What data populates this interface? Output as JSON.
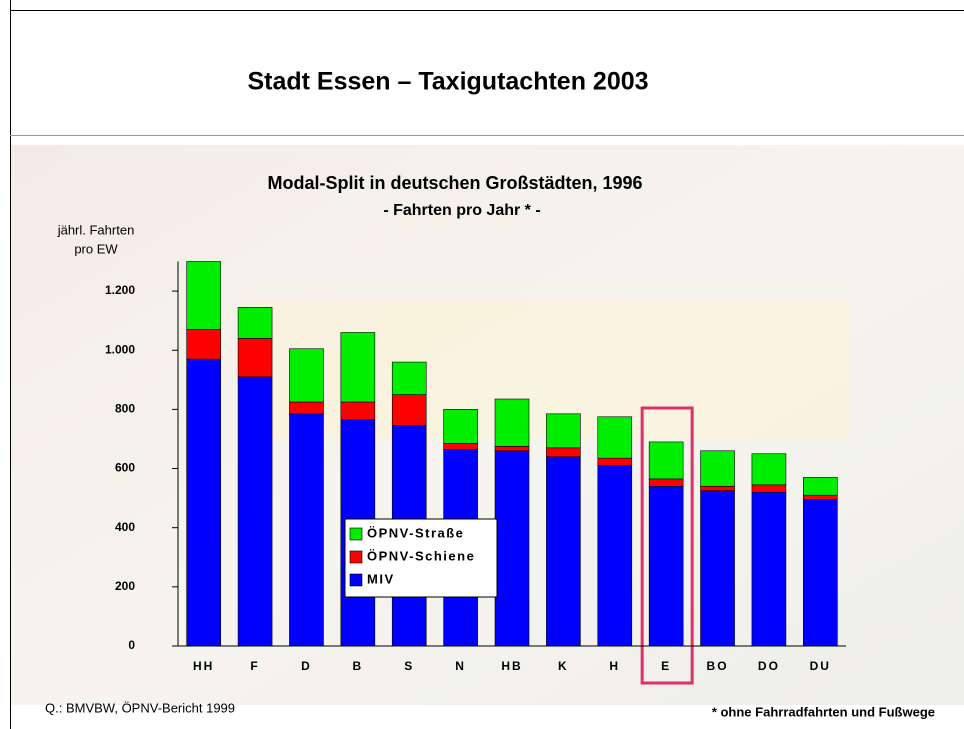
{
  "header": {
    "title": "Stadt Essen – Taxigutachten 2003"
  },
  "chart_data": {
    "type": "stacked_bar",
    "title": "Modal-Split in deutschen Großstädten, 1996",
    "subtitle": "- Fahrten pro Jahr * -",
    "y_label": [
      "jährl. Fahrten",
      "pro EW"
    ],
    "categories": [
      "HH",
      "F",
      "D",
      "B",
      "S",
      "N",
      "HB",
      "K",
      "H",
      "E",
      "BO",
      "DO",
      "DU"
    ],
    "series": [
      {
        "name": "MIV",
        "color": "#0000ff",
        "values": [
          970,
          910,
          785,
          765,
          745,
          665,
          660,
          640,
          610,
          540,
          525,
          520,
          495
        ]
      },
      {
        "name": "ÖPNV-Schiene",
        "color": "#ff0000",
        "values": [
          100,
          130,
          40,
          60,
          105,
          20,
          15,
          30,
          25,
          25,
          15,
          25,
          15
        ]
      },
      {
        "name": "ÖPNV-Straße",
        "color": "#00ee00",
        "values": [
          230,
          105,
          180,
          235,
          110,
          115,
          160,
          115,
          140,
          125,
          120,
          105,
          60
        ]
      }
    ],
    "ylim": [
      0,
      1300
    ],
    "yticks": [
      0,
      200,
      400,
      600,
      800,
      {
        "value": 1000,
        "label": "1.000"
      },
      {
        "value": 1200,
        "label": "1.200"
      }
    ],
    "grid": false,
    "highlight_category": "E",
    "highlight_color": "#e0306a"
  },
  "footer": {
    "source": "Q.: BMVBW, ÖPNV-Bericht 1999",
    "note": "* ohne Fahrradfahrten und Fußwege"
  }
}
